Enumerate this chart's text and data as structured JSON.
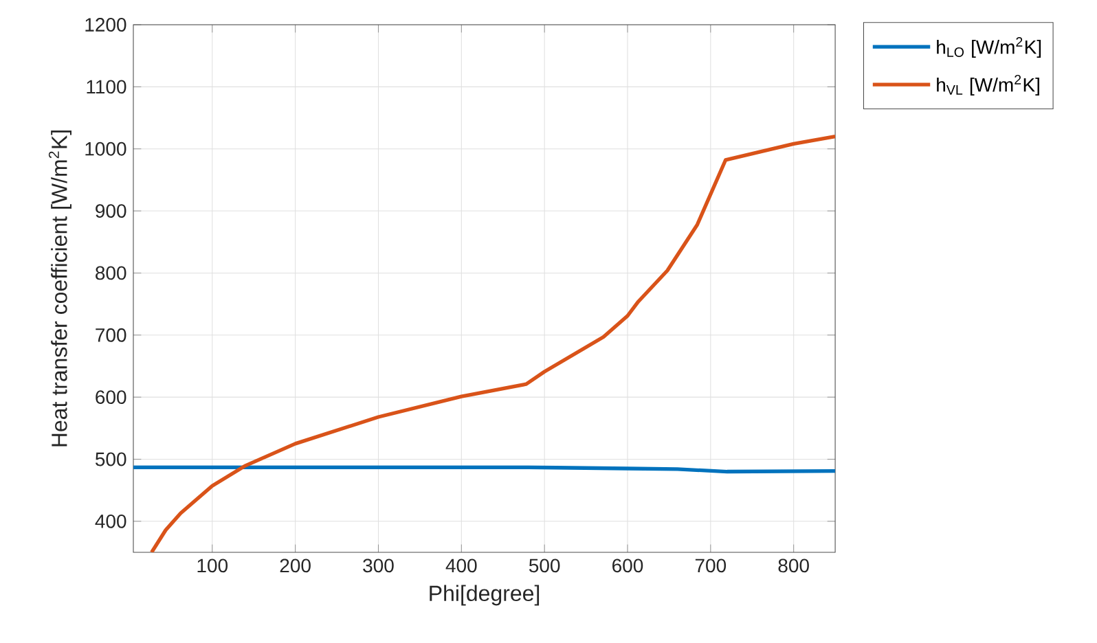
{
  "chart_data": {
    "type": "line",
    "xlabel": "Phi[degree]",
    "ylabel": "Heat transfer coefficient [W/m$^{2}$K]",
    "xlim": [
      5,
      850
    ],
    "ylim": [
      350,
      1200
    ],
    "xticks": [
      100,
      200,
      300,
      400,
      500,
      600,
      700,
      800
    ],
    "yticks": [
      400,
      500,
      600,
      700,
      800,
      900,
      1000,
      1100,
      1200
    ],
    "grid": true,
    "legend": "top right",
    "line_style": "solid",
    "marker": "none",
    "series": [
      {
        "name": "h$_{LO}$ [W/m$^{2}$K]",
        "color": "#0072bd",
        "x": [
          5,
          480,
          600,
          660,
          720,
          850
        ],
        "values": [
          487,
          487,
          485,
          484,
          480,
          481
        ]
      },
      {
        "name": "h$_{VL}$ [W/m$^{2}$K]",
        "color": "#d95319",
        "x": [
          27,
          44,
          62,
          100,
          139,
          200,
          300,
          400,
          478,
          500,
          571,
          600,
          613,
          648,
          684,
          718,
          800,
          850
        ],
        "values": [
          350,
          386,
          413,
          457,
          489,
          525,
          568,
          601,
          621,
          641,
          697,
          731,
          754,
          804,
          878,
          982,
          1008,
          1020
        ]
      }
    ]
  }
}
